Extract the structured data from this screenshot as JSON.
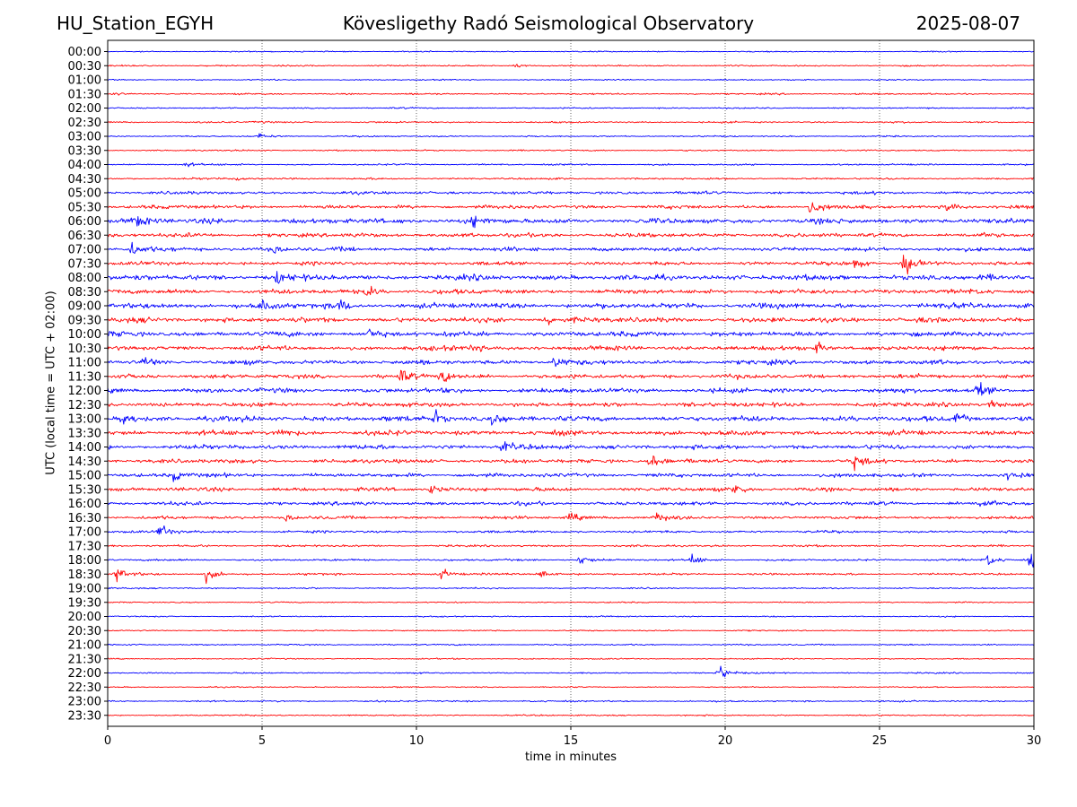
{
  "header": {
    "station": "HU_Station_EGYH",
    "title": "Kövesligethy Radó Seismological Observatory",
    "date": "2025-08-07"
  },
  "chart_data": {
    "type": "line",
    "subtype": "helicorder",
    "xlabel": "time in minutes",
    "ylabel": "UTC (local time = UTC + 02:00)",
    "xlim": [
      0,
      30
    ],
    "x_ticks": [
      0,
      5,
      10,
      15,
      20,
      25,
      30
    ],
    "grid": "vertical dotted lines at 5-minute ticks",
    "row_labels": [
      "00:00",
      "00:30",
      "01:00",
      "01:30",
      "02:00",
      "02:30",
      "03:00",
      "03:30",
      "04:00",
      "04:30",
      "05:00",
      "05:30",
      "06:00",
      "06:30",
      "07:00",
      "07:30",
      "08:00",
      "08:30",
      "09:00",
      "09:30",
      "10:00",
      "10:30",
      "11:00",
      "11:30",
      "12:00",
      "12:30",
      "13:00",
      "13:30",
      "14:00",
      "14:30",
      "15:00",
      "15:30",
      "16:00",
      "16:30",
      "17:00",
      "17:30",
      "18:00",
      "18:30",
      "19:00",
      "19:30",
      "20:00",
      "20:30",
      "21:00",
      "21:30",
      "22:00",
      "22:30",
      "23:00",
      "23:30"
    ],
    "colors": [
      "#0000ff",
      "#ff0000"
    ],
    "noise_level": [
      0.6,
      0.7,
      0.6,
      0.8,
      0.7,
      0.8,
      0.7,
      0.7,
      0.8,
      0.9,
      1.5,
      1.8,
      2.5,
      2.0,
      2.0,
      1.8,
      2.6,
      2.3,
      2.6,
      2.5,
      2.4,
      2.2,
      2.2,
      2.1,
      2.3,
      2.2,
      2.6,
      2.4,
      2.2,
      2.0,
      1.9,
      1.9,
      1.8,
      1.5,
      1.2,
      1.0,
      1.0,
      1.0,
      0.7,
      0.6,
      0.6,
      0.6,
      0.7,
      0.6,
      0.7,
      0.6,
      0.8,
      0.7
    ],
    "events": [
      {
        "row": 1,
        "minute": 13.2,
        "amp": 1.5
      },
      {
        "row": 3,
        "minute": 0.2,
        "amp": 2.0
      },
      {
        "row": 5,
        "minute": 4.8,
        "amp": 1.5
      },
      {
        "row": 6,
        "minute": 4.9,
        "amp": 2.5
      },
      {
        "row": 8,
        "minute": 2.5,
        "amp": 2.5
      },
      {
        "row": 9,
        "minute": 4.2,
        "amp": 2.5
      },
      {
        "row": 11,
        "minute": 22.8,
        "amp": 7.0
      },
      {
        "row": 11,
        "minute": 27.2,
        "amp": 4.0
      },
      {
        "row": 12,
        "minute": 0.9,
        "amp": 6.0
      },
      {
        "row": 12,
        "minute": 11.8,
        "amp": 4.5
      },
      {
        "row": 14,
        "minute": 0.8,
        "amp": 6.0
      },
      {
        "row": 14,
        "minute": 5.4,
        "amp": 4.0
      },
      {
        "row": 15,
        "minute": 25.8,
        "amp": 12.0
      },
      {
        "row": 15,
        "minute": 24.2,
        "amp": 4.0
      },
      {
        "row": 16,
        "minute": 5.5,
        "amp": 4.5
      },
      {
        "row": 17,
        "minute": 8.4,
        "amp": 4.5
      },
      {
        "row": 18,
        "minute": 5.0,
        "amp": 5.0
      },
      {
        "row": 18,
        "minute": 7.5,
        "amp": 5.0
      },
      {
        "row": 19,
        "minute": 14.2,
        "amp": 4.5
      },
      {
        "row": 20,
        "minute": 8.5,
        "amp": 4.5
      },
      {
        "row": 21,
        "minute": 11.8,
        "amp": 4.5
      },
      {
        "row": 21,
        "minute": 23.0,
        "amp": 4.5
      },
      {
        "row": 22,
        "minute": 1.2,
        "amp": 4.0
      },
      {
        "row": 22,
        "minute": 14.5,
        "amp": 5.0
      },
      {
        "row": 23,
        "minute": 9.5,
        "amp": 6.0
      },
      {
        "row": 23,
        "minute": 10.8,
        "amp": 6.0
      },
      {
        "row": 24,
        "minute": 28.2,
        "amp": 6.0
      },
      {
        "row": 25,
        "minute": 28.6,
        "amp": 5.0
      },
      {
        "row": 26,
        "minute": 0.5,
        "amp": 6.0
      },
      {
        "row": 26,
        "minute": 10.6,
        "amp": 6.0
      },
      {
        "row": 26,
        "minute": 12.5,
        "amp": 7.0
      },
      {
        "row": 26,
        "minute": 27.5,
        "amp": 6.0
      },
      {
        "row": 27,
        "minute": 5.5,
        "amp": 5.0
      },
      {
        "row": 28,
        "minute": 12.8,
        "amp": 5.0
      },
      {
        "row": 29,
        "minute": 17.6,
        "amp": 6.0
      },
      {
        "row": 29,
        "minute": 24.2,
        "amp": 5.0
      },
      {
        "row": 30,
        "minute": 2.1,
        "amp": 6.0
      },
      {
        "row": 30,
        "minute": 29.2,
        "amp": 4.0
      },
      {
        "row": 31,
        "minute": 10.5,
        "amp": 4.5
      },
      {
        "row": 31,
        "minute": 20.3,
        "amp": 6.0
      },
      {
        "row": 32,
        "minute": 28.3,
        "amp": 5.0
      },
      {
        "row": 33,
        "minute": 5.8,
        "amp": 4.0
      },
      {
        "row": 33,
        "minute": 15.0,
        "amp": 4.0
      },
      {
        "row": 33,
        "minute": 17.8,
        "amp": 4.0
      },
      {
        "row": 34,
        "minute": 1.7,
        "amp": 7.0
      },
      {
        "row": 36,
        "minute": 15.3,
        "amp": 5.0
      },
      {
        "row": 36,
        "minute": 18.9,
        "amp": 5.0
      },
      {
        "row": 36,
        "minute": 28.5,
        "amp": 6.0
      },
      {
        "row": 36,
        "minute": 29.9,
        "amp": 7.0
      },
      {
        "row": 37,
        "minute": 0.3,
        "amp": 6.0
      },
      {
        "row": 37,
        "minute": 3.2,
        "amp": 6.0
      },
      {
        "row": 37,
        "minute": 10.8,
        "amp": 5.0
      },
      {
        "row": 37,
        "minute": 14.0,
        "amp": 5.0
      },
      {
        "row": 44,
        "minute": 19.8,
        "amp": 8.0
      }
    ]
  }
}
